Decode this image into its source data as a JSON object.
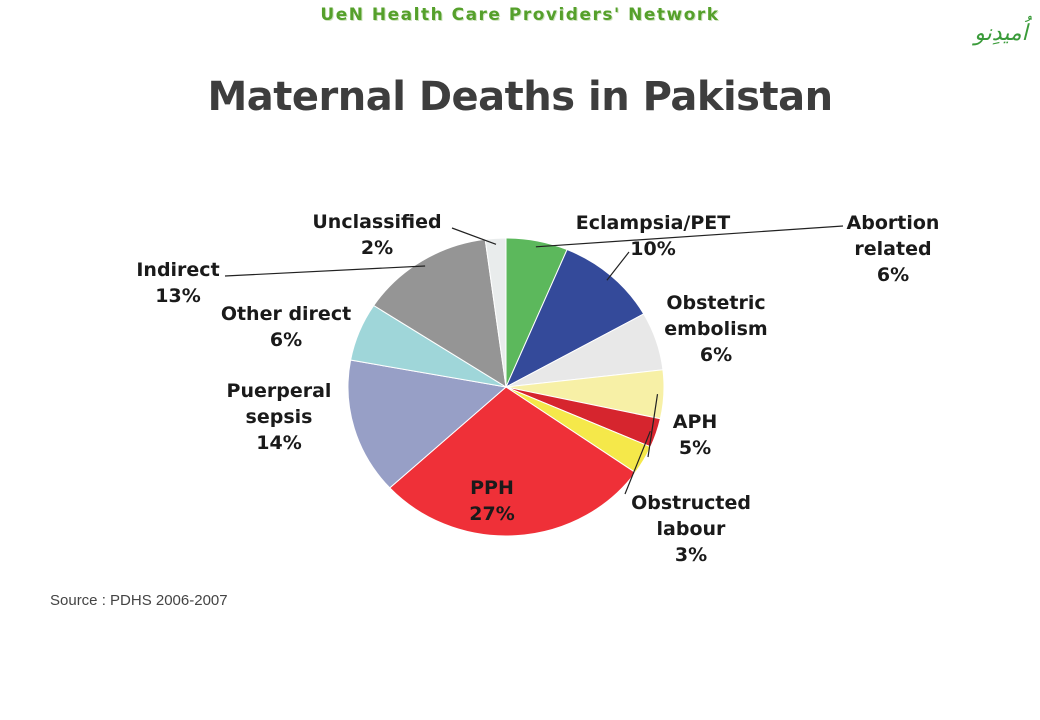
{
  "header": {
    "network_title": "UeN Health Care Providers' Network",
    "logo_text": "اُمیدِنو",
    "page_title": "Maternal Deaths in Pakistan"
  },
  "source_note": "Source : PDHS 2006-2007",
  "colors": {
    "network_title": "#55a02b",
    "page_title": "#3d3d3d"
  },
  "chart_data": {
    "type": "pie",
    "title": "Maternal Deaths in Pakistan",
    "start_angle_deg": 0,
    "direction": "clockwise",
    "unit": "%",
    "slices": [
      {
        "label": "Abortion related",
        "value": 6,
        "color": "#5cb85c"
      },
      {
        "label": "Eclampsia/PET",
        "value": 10,
        "color": "#344a9a"
      },
      {
        "label": "Obstetric embolism",
        "value": 6,
        "color": "#e8e8e8"
      },
      {
        "label": "APH",
        "value": 5,
        "color": "#f7f0a6"
      },
      {
        "label": "Obstructed labour",
        "value": 3,
        "color": "#d6252e"
      },
      {
        "label": "",
        "value": 3,
        "color": "#f5e84a"
      },
      {
        "label": "PPH",
        "value": 27,
        "color": "#ef3038"
      },
      {
        "label": "Puerperal sepsis",
        "value": 14,
        "color": "#979fc6"
      },
      {
        "label": "Other direct",
        "value": 6,
        "color": "#9fd6d9"
      },
      {
        "label": "Indirect",
        "value": 13,
        "color": "#959595"
      },
      {
        "label": "Unclassified",
        "value": 2,
        "color": "#e9ecec"
      }
    ],
    "labels": [
      {
        "lines": [
          "Eclampsia/PET",
          "10%"
        ],
        "pointer": "Eclampsia/PET"
      },
      {
        "lines": [
          "Abortion",
          "related",
          "6%"
        ],
        "pointer": "Abortion related"
      },
      {
        "lines": [
          "Obstetric",
          "embolism",
          "6%"
        ],
        "pointer": ""
      },
      {
        "lines": [
          "APH",
          "5%"
        ],
        "pointer": "APH"
      },
      {
        "lines": [
          "Obstructed",
          "labour",
          "3%"
        ],
        "pointer": "Obstructed labour"
      },
      {
        "lines": [
          "PPH",
          "27%"
        ],
        "pointer": ""
      },
      {
        "lines": [
          "Puerperal",
          "sepsis",
          "14%"
        ],
        "pointer": ""
      },
      {
        "lines": [
          "Other direct",
          "6%"
        ],
        "pointer": ""
      },
      {
        "lines": [
          "Indirect",
          "13%"
        ],
        "pointer": "Indirect"
      },
      {
        "lines": [
          "Unclassified",
          "2%"
        ],
        "pointer": "Unclassified"
      }
    ]
  }
}
